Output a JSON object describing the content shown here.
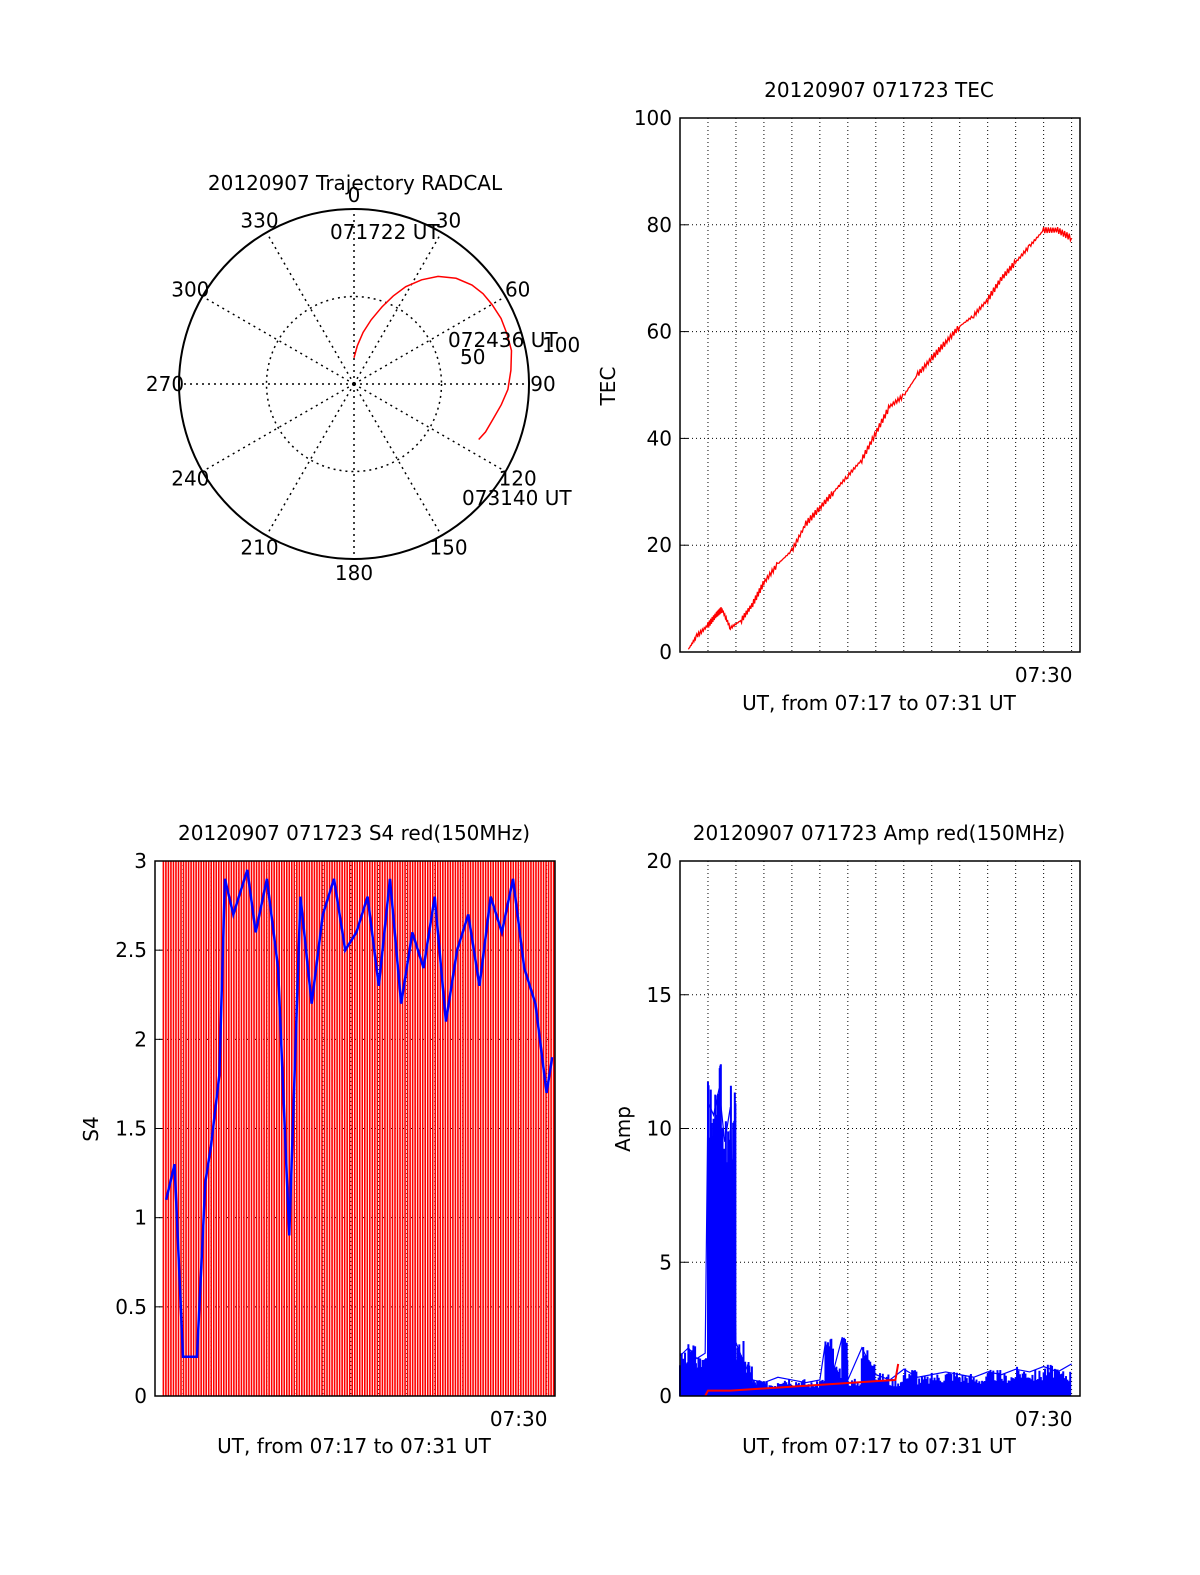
{
  "chart_data": [
    {
      "id": "trajectory",
      "type": "polar",
      "title": "20120907 Trajectory RADCAL",
      "angle_labels": [
        "0",
        "30",
        "60",
        "90",
        "120",
        "150",
        "180",
        "210",
        "240",
        "270",
        "300",
        "330"
      ],
      "radius_labels": [
        "50",
        "100"
      ],
      "rlim": [
        0,
        100
      ],
      "grid": true,
      "series": [
        {
          "color": "#ff0000",
          "points": [
            [
              0,
              15
            ],
            [
              5,
              22
            ],
            [
              10,
              30
            ],
            [
              15,
              38
            ],
            [
              20,
              47
            ],
            [
              24,
              55
            ],
            [
              28,
              63
            ],
            [
              33,
              71
            ],
            [
              38,
              78
            ],
            [
              44,
              84
            ],
            [
              50,
              88
            ],
            [
              55,
              90
            ],
            [
              60,
              91
            ],
            [
              66,
              92
            ],
            [
              72,
              92
            ],
            [
              78,
              92
            ],
            [
              85,
              90
            ],
            [
              92,
              88
            ],
            [
              98,
              85
            ],
            [
              104,
              82
            ],
            [
              110,
              80
            ],
            [
              114,
              78
            ]
          ]
        }
      ],
      "annotations": [
        {
          "text": "071722 UT"
        },
        {
          "text": "072436 UT"
        },
        {
          "text": "073140 UT"
        }
      ]
    },
    {
      "id": "tec",
      "type": "line",
      "title": "20120907 071723 TEC",
      "ylabel": "TEC",
      "xlabel": "UT, from 07:17 to 07:31 UT",
      "ylim": [
        0,
        100
      ],
      "yticks": [
        "0",
        "20",
        "40",
        "60",
        "80",
        "100"
      ],
      "xlim": [
        0,
        14.3
      ],
      "xtick_label": "07:30",
      "xtick_value": 13,
      "grid": true,
      "series": [
        {
          "color": "#ff0000",
          "x": [
            0.3,
            0.6,
            1.0,
            1.3,
            1.5,
            1.8,
            2.2,
            2.6,
            3.0,
            3.5,
            4.0,
            4.5,
            5.0,
            5.5,
            6.0,
            6.5,
            7.0,
            7.5,
            8.0,
            8.5,
            9.0,
            9.5,
            10.0,
            10.5,
            11.0,
            11.5,
            12.0,
            12.5,
            13.0,
            13.5,
            14.0
          ],
          "y": [
            0.5,
            3,
            5,
            7,
            8,
            4.5,
            6,
            9,
            13,
            16.5,
            19,
            24,
            27,
            30,
            33,
            36,
            41,
            46,
            48,
            52,
            55,
            58,
            61,
            63,
            66,
            70,
            73,
            76,
            79,
            79,
            77.5
          ]
        }
      ]
    },
    {
      "id": "s4",
      "type": "line",
      "title": "20120907 071723 S4 red(150MHz)",
      "ylabel": "S4",
      "xlabel": "UT, from 07:17 to 07:31 UT",
      "ylim": [
        0,
        3
      ],
      "yticks": [
        "0",
        "0.5",
        "1",
        "1.5",
        "2",
        "2.5",
        "3"
      ],
      "xlim": [
        0,
        14.3
      ],
      "xtick_label": "07:30",
      "xtick_value": 13,
      "grid": true,
      "series": [
        {
          "color": "#ff0000",
          "description_level": "saturated spikes 0–3"
        },
        {
          "color": "#0000ff",
          "x": [
            0.4,
            0.7,
            1.0,
            1.3,
            1.5,
            1.8,
            2.0,
            2.3,
            2.5,
            2.8,
            3.0,
            3.3,
            3.6,
            4.0,
            4.4,
            4.8,
            5.2,
            5.6,
            6.0,
            6.4,
            6.8,
            7.2,
            7.6,
            8.0,
            8.4,
            8.8,
            9.2,
            9.6,
            10.0,
            10.4,
            10.8,
            11.2,
            11.6,
            12.0,
            12.4,
            12.8,
            13.2,
            13.6,
            14.0,
            14.2
          ],
          "y": [
            1.1,
            1.3,
            0.22,
            0.22,
            0.22,
            1.2,
            1.4,
            1.8,
            2.9,
            2.7,
            2.8,
            2.95,
            2.6,
            2.9,
            2.4,
            0.9,
            2.8,
            2.2,
            2.7,
            2.9,
            2.5,
            2.6,
            2.8,
            2.3,
            2.9,
            2.2,
            2.6,
            2.4,
            2.8,
            2.1,
            2.5,
            2.7,
            2.3,
            2.8,
            2.6,
            2.9,
            2.4,
            2.2,
            1.7,
            1.9
          ]
        }
      ]
    },
    {
      "id": "amp",
      "type": "line",
      "title": "20120907 071723 Amp red(150MHz)",
      "ylabel": "Amp",
      "xlabel": "UT, from 07:17 to 07:31 UT",
      "ylim": [
        0,
        20
      ],
      "yticks": [
        "0",
        "5",
        "10",
        "15",
        "20"
      ],
      "xlim": [
        0,
        14.3
      ],
      "xtick_label": "07:30",
      "xtick_value": 13,
      "grid": true,
      "series": [
        {
          "color": "#0000ff",
          "x": [
            0.0,
            0.3,
            0.6,
            0.9,
            1.0,
            1.2,
            1.4,
            1.6,
            1.8,
            2.0,
            2.3,
            2.6,
            3.0,
            3.5,
            4.0,
            4.5,
            5.0,
            5.2,
            5.5,
            5.8,
            6.0,
            6.5,
            7.0,
            7.5,
            8.0,
            8.5,
            9.0,
            9.5,
            10.0,
            10.5,
            11.0,
            11.5,
            12.0,
            12.5,
            13.0,
            13.5,
            14.0
          ],
          "y": [
            1.5,
            1.8,
            1.4,
            1.6,
            11.0,
            10.5,
            11.5,
            9.5,
            10.8,
            2.0,
            1.2,
            0.6,
            0.5,
            0.7,
            0.6,
            0.5,
            0.6,
            2.0,
            1.0,
            2.2,
            0.6,
            1.8,
            0.8,
            0.6,
            1.0,
            0.7,
            0.8,
            0.9,
            0.8,
            0.7,
            0.9,
            0.8,
            1.0,
            0.9,
            1.1,
            0.9,
            1.2
          ]
        },
        {
          "color": "#ff0000",
          "x": [
            0.9,
            1.0,
            1.2,
            1.4,
            1.6,
            1.8,
            7.7,
            7.8
          ],
          "y": [
            0,
            0.2,
            0.2,
            0.2,
            0.2,
            0.2,
            0.6,
            1.2
          ]
        }
      ]
    }
  ]
}
